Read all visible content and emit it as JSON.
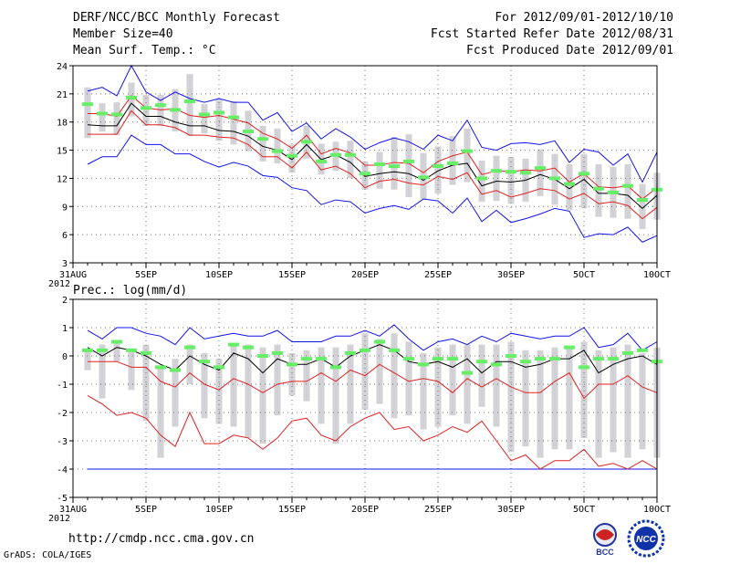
{
  "header": {
    "line1_left": "DERF/NCC/BCC Monthly Forecast",
    "line2_left": "Member Size=40",
    "line3_left": "Mean Surf. Temp.: °C",
    "line1_right": "For 2012/09/01-2012/10/10",
    "line2_right": "Fcst Started Refer Date 2012/08/31",
    "line3_right": "Fcst Produced Date 2012/09/01"
  },
  "footer": {
    "url": "http://cmdp.ncc.cma.gov.cn",
    "credit": "GrADS: COLA/IGES",
    "logo1_label": "BCC",
    "logo2_label": "NCC"
  },
  "colors": {
    "box": "#d2d2d6",
    "marker": "#66ee66",
    "ens_mean": "#000000",
    "inner_band": "#dd2222",
    "outer_band": "#1111ee",
    "grid": "#777777"
  },
  "chart_data": [
    {
      "type": "line",
      "title": "Mean Surf. Temp.: °C",
      "x_tick_labels": [
        "31AUG",
        "5SEP",
        "10SEP",
        "15SEP",
        "20SEP",
        "25SEP",
        "30SEP",
        "5OCT",
        "10OCT"
      ],
      "x_tick_days": [
        0,
        5,
        10,
        15,
        20,
        25,
        30,
        35,
        40
      ],
      "x_year_label": "2012",
      "days": [
        1,
        2,
        3,
        4,
        5,
        6,
        7,
        8,
        9,
        10,
        11,
        12,
        13,
        14,
        15,
        16,
        17,
        18,
        19,
        20,
        21,
        22,
        23,
        24,
        25,
        26,
        27,
        28,
        29,
        30,
        31,
        32,
        33,
        34,
        35,
        36,
        37,
        38,
        39,
        40
      ],
      "ylim": [
        3,
        24
      ],
      "yticks": [
        3,
        6,
        9,
        12,
        15,
        18,
        21,
        24
      ],
      "series": [
        {
          "name": "max",
          "color_key": "outer_band",
          "values": [
            13.5,
            14.3,
            14.3,
            16.6,
            15.6,
            15.6,
            14.6,
            14.6,
            13.8,
            13.2,
            13.7,
            13.3,
            12.3,
            12.1,
            11.0,
            10.7,
            9.2,
            9.7,
            9.5,
            8.3,
            8.8,
            9.1,
            8.7,
            9.8,
            9.6,
            8.3,
            9.9,
            7.4,
            8.6,
            7.3,
            7.7,
            8.2,
            8.8,
            8.5,
            5.7,
            6.1,
            6.0,
            6.8,
            5.2,
            5.9
          ]
        },
        {
          "name": "ens_min_red",
          "color_key": "inner_band",
          "values": [
            16.7,
            16.7,
            16.7,
            19.2,
            17.7,
            17.7,
            17.4,
            16.6,
            16.6,
            16.4,
            16.3,
            15.6,
            14.3,
            14.3,
            13.1,
            14.8,
            12.9,
            13.3,
            12.5,
            11.0,
            11.7,
            11.9,
            11.5,
            11.3,
            12.2,
            11.9,
            12.6,
            10.3,
            10.7,
            10.0,
            10.4,
            10.9,
            10.7,
            9.8,
            10.4,
            9.3,
            9.5,
            9.1,
            7.7,
            8.9
          ]
        },
        {
          "name": "ensemble_mean",
          "color_key": "ens_mean",
          "values": [
            17.7,
            17.6,
            17.6,
            20.0,
            18.6,
            18.6,
            18.0,
            17.6,
            17.6,
            17.1,
            17.0,
            16.5,
            15.4,
            15.0,
            14.0,
            15.6,
            14.0,
            14.5,
            13.7,
            12.2,
            12.5,
            12.7,
            12.5,
            11.8,
            12.8,
            13.4,
            13.6,
            11.2,
            11.7,
            11.6,
            11.8,
            12.4,
            11.9,
            10.9,
            11.9,
            10.4,
            10.4,
            10.2,
            8.8,
            10.2
          ]
        },
        {
          "name": "ens_max_red",
          "color_key": "inner_band",
          "values": [
            18.9,
            18.9,
            18.6,
            20.8,
            19.5,
            19.3,
            19.4,
            18.7,
            18.5,
            18.7,
            18.3,
            17.9,
            16.8,
            16.2,
            15.2,
            16.6,
            14.6,
            15.2,
            14.7,
            13.4,
            13.4,
            13.7,
            13.6,
            12.6,
            13.8,
            14.4,
            14.8,
            12.4,
            12.8,
            12.7,
            12.9,
            12.8,
            13.1,
            11.6,
            12.5,
            11.1,
            11.0,
            11.2,
            9.8,
            11.0
          ]
        },
        {
          "name": "min",
          "color_key": "outer_band",
          "values": [
            21.3,
            21.7,
            20.8,
            24.0,
            21.2,
            20.3,
            21.2,
            20.5,
            20.1,
            20.5,
            20.1,
            20.1,
            18.2,
            19.0,
            17.0,
            17.9,
            16.2,
            17.3,
            16.4,
            15.1,
            15.8,
            16.3,
            15.9,
            15.1,
            16.6,
            16.0,
            18.2,
            15.3,
            15.0,
            15.7,
            15.8,
            15.6,
            16.0,
            13.7,
            15.1,
            14.8,
            13.4,
            14.6,
            11.6,
            14.8
          ]
        },
        {
          "name": "observed_marker",
          "color_key": "marker",
          "values": [
            19.9,
            18.9,
            18.8,
            20.6,
            19.5,
            19.8,
            19.3,
            20.2,
            18.8,
            19.0,
            18.5,
            17.0,
            16.2,
            14.9,
            14.4,
            15.9,
            13.8,
            14.5,
            14.5,
            12.5,
            13.5,
            13.3,
            13.8,
            12.1,
            13.3,
            13.6,
            14.9,
            12.0,
            12.8,
            12.7,
            12.6,
            13.1,
            12.0,
            11.4,
            12.5,
            10.9,
            10.5,
            11.2,
            9.7,
            10.8
          ]
        },
        {
          "name": "box_low",
          "color_key": "box",
          "values": [
            16.3,
            17.0,
            16.6,
            18.6,
            17.6,
            17.6,
            17.0,
            16.5,
            16.8,
            16.0,
            15.6,
            14.9,
            13.8,
            13.6,
            12.6,
            14.1,
            12.4,
            12.8,
            12.0,
            10.8,
            10.9,
            10.8,
            10.0,
            9.8,
            10.4,
            11.3,
            11.6,
            9.5,
            9.6,
            9.3,
            9.5,
            10.1,
            9.2,
            8.6,
            8.8,
            7.9,
            7.8,
            7.7,
            6.6,
            7.6
          ]
        },
        {
          "name": "box_high",
          "color_key": "box",
          "values": [
            21.7,
            20.0,
            20.1,
            22.2,
            20.9,
            20.9,
            21.5,
            23.1,
            19.9,
            20.4,
            20.2,
            19.2,
            17.6,
            17.3,
            15.6,
            17.6,
            15.7,
            15.9,
            16.0,
            13.8,
            14.8,
            16.4,
            16.7,
            14.7,
            15.4,
            16.5,
            17.3,
            13.9,
            14.4,
            14.3,
            14.1,
            15.1,
            14.6,
            13.5,
            14.6,
            13.5,
            13.2,
            13.5,
            11.4,
            12.6
          ]
        }
      ]
    },
    {
      "type": "line",
      "title": "Prec.: log(mm/d)",
      "x_tick_labels": [
        "31AUG",
        "5SEP",
        "10SEP",
        "15SEP",
        "20SEP",
        "25SEP",
        "30SEP",
        "5OCT",
        "10OCT"
      ],
      "x_tick_days": [
        0,
        5,
        10,
        15,
        20,
        25,
        30,
        35,
        40
      ],
      "x_year_label": "2012",
      "days": [
        1,
        2,
        3,
        4,
        5,
        6,
        7,
        8,
        9,
        10,
        11,
        12,
        13,
        14,
        15,
        16,
        17,
        18,
        19,
        20,
        21,
        22,
        23,
        24,
        25,
        26,
        27,
        28,
        29,
        30,
        31,
        32,
        33,
        34,
        35,
        36,
        37,
        38,
        39,
        40
      ],
      "ylim": [
        -5,
        2
      ],
      "yticks": [
        -5,
        -4,
        -3,
        -2,
        -1,
        0,
        1,
        2
      ],
      "series": [
        {
          "name": "floor",
          "color_key": "outer_band",
          "values": [
            -4,
            -4,
            -4,
            -4,
            -4,
            -4,
            -4,
            -4,
            -4,
            -4,
            -4,
            -4,
            -4,
            -4,
            -4,
            -4,
            -4,
            -4,
            -4,
            -4,
            -4,
            -4,
            -4,
            -4,
            -4,
            -4,
            -4,
            -4,
            -4,
            -4,
            -4,
            -4,
            -4,
            -4,
            -4,
            -4,
            -4,
            -4,
            -4,
            -4
          ]
        },
        {
          "name": "lower_red",
          "color_key": "inner_band",
          "values": [
            -1.4,
            -1.7,
            -2.1,
            -2.0,
            -2.2,
            -2.8,
            -3.2,
            -2.0,
            -3.1,
            -3.1,
            -2.8,
            -2.9,
            -3.3,
            -2.9,
            -2.3,
            -2.2,
            -2.8,
            -3.0,
            -2.5,
            -2.2,
            -2.0,
            -2.6,
            -2.5,
            -3.0,
            -2.8,
            -2.5,
            -2.7,
            -2.3,
            -3.0,
            -3.7,
            -3.5,
            -4.0,
            -3.7,
            -3.7,
            -3.3,
            -3.9,
            -3.8,
            -4.0,
            -3.7,
            -4.0
          ]
        },
        {
          "name": "upper_red",
          "color_key": "inner_band",
          "values": [
            -0.2,
            -0.2,
            -0.2,
            -0.4,
            -0.4,
            -0.9,
            -1.1,
            -0.6,
            -1.0,
            -1.2,
            -0.8,
            -1.0,
            -1.3,
            -1.0,
            -0.9,
            -0.9,
            -0.6,
            -0.9,
            -0.5,
            -0.7,
            -0.3,
            -0.6,
            -0.9,
            -0.8,
            -0.9,
            -1.3,
            -0.8,
            -1.1,
            -0.8,
            -1.1,
            -1.3,
            -1.3,
            -0.9,
            -0.6,
            -1.5,
            -1.0,
            -1.0,
            -0.7,
            -1.1,
            -1.3
          ]
        },
        {
          "name": "ensemble_mean",
          "color_key": "ens_mean",
          "values": [
            0.3,
            0.0,
            0.3,
            0.2,
            0.0,
            -0.3,
            -0.5,
            0.0,
            -0.3,
            -0.5,
            0.1,
            -0.1,
            -0.6,
            -0.1,
            -0.3,
            -0.3,
            -0.1,
            -0.4,
            0.0,
            0.2,
            0.4,
            0.2,
            -0.2,
            -0.3,
            -0.2,
            -0.4,
            -0.1,
            -0.6,
            -0.2,
            -0.2,
            -0.4,
            -0.3,
            -0.1,
            -0.1,
            0.2,
            -0.6,
            -0.3,
            -0.1,
            0.0,
            -0.3
          ]
        },
        {
          "name": "upper_blue",
          "color_key": "outer_band",
          "values": [
            0.9,
            0.6,
            1.0,
            1.0,
            0.8,
            0.7,
            0.4,
            1.0,
            0.6,
            0.7,
            0.8,
            0.7,
            0.7,
            0.9,
            0.5,
            0.5,
            0.5,
            0.7,
            0.7,
            0.9,
            0.7,
            1.1,
            0.6,
            0.2,
            0.5,
            0.6,
            0.4,
            0.7,
            0.5,
            0.8,
            0.7,
            0.6,
            0.7,
            0.7,
            1.0,
            0.3,
            0.4,
            0.8,
            0.2,
            0.5
          ]
        },
        {
          "name": "box_low",
          "color_key": "box",
          "values": [
            -0.5,
            -1.5,
            -0.2,
            -1.2,
            -2.3,
            -3.6,
            -2.5,
            -1.0,
            -2.2,
            -2.4,
            -2.5,
            -2.9,
            -3.1,
            -2.1,
            -1.4,
            -1.6,
            -2.4,
            -3.1,
            -2.4,
            -1.9,
            -1.7,
            -2.2,
            -2.1,
            -2.6,
            -2.5,
            -2.1,
            -2.4,
            -1.8,
            -2.5,
            -3.4,
            -3.2,
            -3.6,
            -3.3,
            -3.3,
            -2.9,
            -3.6,
            -3.4,
            -3.6,
            -3.3,
            -3.6
          ]
        },
        {
          "name": "box_high",
          "color_key": "box",
          "values": [
            0.2,
            0.4,
            0.5,
            0.2,
            0.4,
            -0.4,
            -0.1,
            0.4,
            0.1,
            -0.1,
            0.4,
            0.4,
            0.3,
            0.4,
            0.1,
            0.2,
            0.3,
            0.3,
            0.4,
            0.8,
            0.6,
            0.8,
            0.5,
            0.1,
            0.3,
            0.4,
            0.4,
            0.4,
            0.4,
            0.5,
            0.2,
            0.2,
            0.3,
            0.3,
            0.5,
            0.2,
            0.3,
            0.4,
            0.1,
            0.3
          ]
        },
        {
          "name": "observed_marker",
          "color_key": "marker",
          "values": [
            0.2,
            0.2,
            0.5,
            0.2,
            0.1,
            -0.4,
            -0.5,
            0.3,
            -0.2,
            -0.4,
            0.4,
            0.3,
            0.0,
            0.1,
            -0.3,
            -0.1,
            -0.1,
            -0.4,
            0.1,
            0.2,
            0.5,
            0.2,
            -0.1,
            -0.3,
            -0.1,
            -0.1,
            -0.6,
            -0.2,
            -0.3,
            0.0,
            -0.2,
            -0.1,
            -0.1,
            0.3,
            -0.4,
            -0.1,
            -0.1,
            0.1,
            0.2,
            -0.2
          ]
        }
      ]
    }
  ]
}
